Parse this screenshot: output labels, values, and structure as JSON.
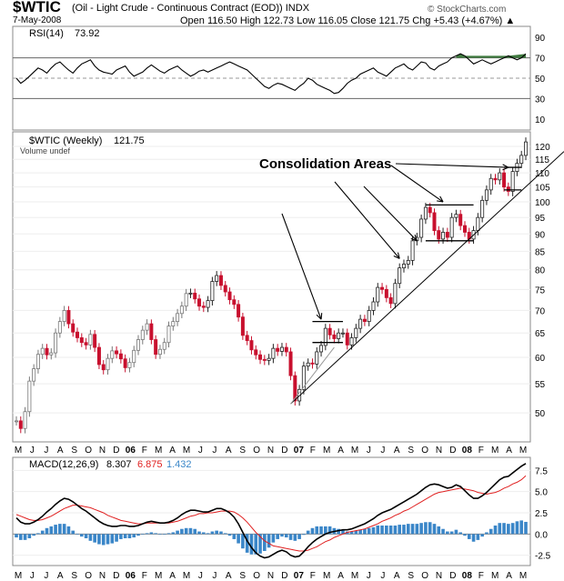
{
  "header": {
    "symbol": "$WTIC",
    "description": "(Oil - Light Crude - Continuous Contract (EOD))  INDX",
    "date": "7-May-2008",
    "ohlc_text": "Open 116.50  High 122.73  Low 116.05  Close 121.75  Chg +5.43 (+4.67%) ▲",
    "logo": "© StockCharts.com"
  },
  "colors": {
    "up": "#222222",
    "down": "#c8102e",
    "early": "#d9a0a0",
    "rsi": "#000000",
    "macd": "#000000",
    "signal": "#e02020",
    "hist": "#3a86c8",
    "overbought_fill": "#3f7a3f",
    "grid": "#cccccc"
  },
  "chart_data": [
    {
      "type": "line",
      "title": "RSI(14) 73.92",
      "legend": {
        "label": "RSI(14)",
        "value": "73.92"
      },
      "ylim": [
        0,
        100
      ],
      "yticks": [
        10,
        30,
        50,
        70,
        90
      ],
      "reference_lines": [
        30,
        50,
        70
      ],
      "series": [
        {
          "values": [
            50,
            45,
            48,
            52,
            56,
            60,
            58,
            55,
            60,
            64,
            66,
            62,
            58,
            55,
            60,
            64,
            66,
            68,
            62,
            58,
            56,
            55,
            54,
            58,
            60,
            62,
            56,
            52,
            54,
            56,
            60,
            63,
            60,
            57,
            55,
            58,
            60,
            62,
            58,
            55,
            52,
            54,
            57,
            58,
            56,
            58,
            60,
            62,
            64,
            66,
            64,
            62,
            60,
            58,
            54,
            50,
            46,
            42,
            40,
            43,
            45,
            44,
            42,
            40,
            38,
            42,
            45,
            50,
            48,
            44,
            42,
            40,
            38,
            35,
            36,
            40,
            45,
            48,
            50,
            54,
            56,
            58,
            60,
            56,
            54,
            52,
            56,
            60,
            62,
            64,
            60,
            58,
            62,
            66,
            65,
            60,
            58,
            62,
            64,
            66,
            70,
            72,
            74,
            72,
            68,
            64,
            66,
            68,
            66,
            64,
            66,
            68,
            70,
            72,
            70,
            68,
            70,
            73.92
          ]
        }
      ]
    },
    {
      "type": "ohlc",
      "title": "$WTIC (Weekly) 121.75",
      "legend": {
        "label": "$WTIC (Weekly)",
        "value": "121.75",
        "volume_label": "Volume undef"
      },
      "ylim": [
        46,
        124
      ],
      "yscale": "log",
      "yticks": [
        50,
        55,
        60,
        65,
        70,
        75,
        80,
        85,
        90,
        95,
        100,
        105,
        110,
        115,
        120
      ],
      "series": [
        {
          "name": "$WTIC",
          "values": [
            48.7,
            47.5,
            50.2,
            55.5,
            57.8,
            60.6,
            61.8,
            60.5,
            60.9,
            65.0,
            67.5,
            70.0,
            67.0,
            65.2,
            64.0,
            63.0,
            62.5,
            64.7,
            62.0,
            58.6,
            57.6,
            59.8,
            61.3,
            60.7,
            59.7,
            58.0,
            59.0,
            61.4,
            63.6,
            65.6,
            67.0,
            63.6,
            60.6,
            61.6,
            63.0,
            66.5,
            67.5,
            69.3,
            71.0,
            74.0,
            74.1,
            72.7,
            71.0,
            70.7,
            72.3,
            77.0,
            78.5,
            76.0,
            74.4,
            72.5,
            71.4,
            68.5,
            64.5,
            63.4,
            61.5,
            60.5,
            59.6,
            59.4,
            59.8,
            61.8,
            61.2,
            62.0,
            61.1,
            56.5,
            52.0,
            54.0,
            58.3,
            58.9,
            58.7,
            61.1,
            62.4,
            66.0,
            64.6,
            63.8,
            65.0,
            65.0,
            62.5,
            64.0,
            66.0,
            68.0,
            67.5,
            70.0,
            72.0,
            75.5,
            75.0,
            73.0,
            71.6,
            76.5,
            80.5,
            81.5,
            82.5,
            88.0,
            89.0,
            94.5,
            98.2,
            96.5,
            91.0,
            88.5,
            90.5,
            89.0,
            95.0,
            96.0,
            92.5,
            90.5,
            88.5,
            91.0,
            95.0,
            100.5,
            104.0,
            108.0,
            107.5,
            110.0,
            105.0,
            103.5,
            110.5,
            113.5,
            116.5,
            121.75
          ]
        }
      ],
      "annotations": {
        "text": "Consolidation Areas"
      }
    },
    {
      "type": "line",
      "title": "MACD(12,26,9) 8.307, 6.875, 1.432",
      "legend": {
        "label": "MACD(12,26,9)",
        "macd": "8.307",
        "signal": "6.875",
        "histogram": "1.432"
      },
      "ylim": [
        -3.5,
        8.5
      ],
      "yticks": [
        -2.5,
        0.0,
        2.5,
        5.0,
        7.5
      ],
      "series": [
        {
          "name": "MACD",
          "values": [
            1.9,
            1.4,
            1.2,
            1.2,
            1.4,
            1.7,
            2.1,
            2.6,
            3.0,
            3.5,
            3.9,
            4.2,
            4.1,
            3.8,
            3.4,
            3.0,
            2.7,
            2.3,
            1.9,
            1.5,
            1.2,
            1.0,
            0.9,
            0.9,
            1.0,
            1.0,
            0.9,
            0.9,
            1.0,
            1.2,
            1.4,
            1.5,
            1.4,
            1.3,
            1.3,
            1.4,
            1.6,
            1.9,
            2.3,
            2.6,
            2.8,
            2.8,
            2.7,
            2.6,
            2.6,
            2.8,
            3.0,
            3.0,
            2.8,
            2.5,
            2.0,
            1.2,
            0.2,
            -0.8,
            -1.6,
            -2.2,
            -2.6,
            -2.8,
            -2.7,
            -2.4,
            -2.1,
            -1.9,
            -2.1,
            -2.5,
            -2.7,
            -2.6,
            -2.1,
            -1.5,
            -1.0,
            -0.6,
            -0.3,
            0.0,
            0.2,
            0.3,
            0.4,
            0.5,
            0.5,
            0.6,
            0.8,
            1.0,
            1.2,
            1.5,
            1.8,
            2.2,
            2.5,
            2.7,
            2.9,
            3.2,
            3.5,
            3.8,
            4.1,
            4.4,
            4.7,
            5.1,
            5.5,
            5.8,
            5.9,
            5.8,
            5.6,
            5.4,
            5.5,
            5.8,
            5.6,
            5.1,
            4.6,
            4.2,
            4.2,
            4.5,
            4.9,
            5.4,
            5.9,
            6.4,
            6.7,
            6.8,
            7.2,
            7.6,
            8.0,
            8.307
          ]
        },
        {
          "name": "Signal",
          "values": [
            2.3,
            2.1,
            1.9,
            1.7,
            1.6,
            1.6,
            1.7,
            1.9,
            2.1,
            2.4,
            2.7,
            3.0,
            3.2,
            3.4,
            3.4,
            3.3,
            3.2,
            3.1,
            2.9,
            2.7,
            2.5,
            2.2,
            2.0,
            1.8,
            1.6,
            1.5,
            1.4,
            1.3,
            1.2,
            1.2,
            1.3,
            1.3,
            1.3,
            1.3,
            1.3,
            1.3,
            1.4,
            1.5,
            1.7,
            1.9,
            2.1,
            2.2,
            2.4,
            2.4,
            2.5,
            2.5,
            2.6,
            2.7,
            2.7,
            2.7,
            2.6,
            2.3,
            1.9,
            1.4,
            0.8,
            0.2,
            -0.3,
            -0.8,
            -1.1,
            -1.4,
            -1.5,
            -1.6,
            -1.7,
            -1.8,
            -1.9,
            -2.0,
            -2.0,
            -1.9,
            -1.7,
            -1.5,
            -1.2,
            -0.9,
            -0.7,
            -0.4,
            -0.2,
            0.0,
            0.2,
            0.3,
            0.4,
            0.5,
            0.6,
            0.8,
            1.0,
            1.2,
            1.5,
            1.7,
            1.9,
            2.2,
            2.4,
            2.7,
            2.9,
            3.2,
            3.5,
            3.8,
            4.1,
            4.4,
            4.7,
            4.9,
            5.0,
            5.1,
            5.2,
            5.3,
            5.4,
            5.3,
            5.2,
            5.1,
            4.9,
            4.8,
            4.7,
            4.8,
            4.9,
            5.1,
            5.4,
            5.6,
            5.9,
            6.1,
            6.4,
            6.875
          ]
        }
      ]
    }
  ],
  "x_axis": {
    "month_labels": [
      "M",
      "J",
      "J",
      "A",
      "S",
      "O",
      "N",
      "D",
      "06",
      "F",
      "M",
      "A",
      "M",
      "J",
      "J",
      "A",
      "S",
      "O",
      "N",
      "D",
      "07",
      "F",
      "M",
      "A",
      "M",
      "J",
      "J",
      "A",
      "S",
      "O",
      "N",
      "D",
      "08",
      "F",
      "M",
      "A",
      "M"
    ],
    "bold_labels": [
      "06",
      "07",
      "08"
    ]
  }
}
